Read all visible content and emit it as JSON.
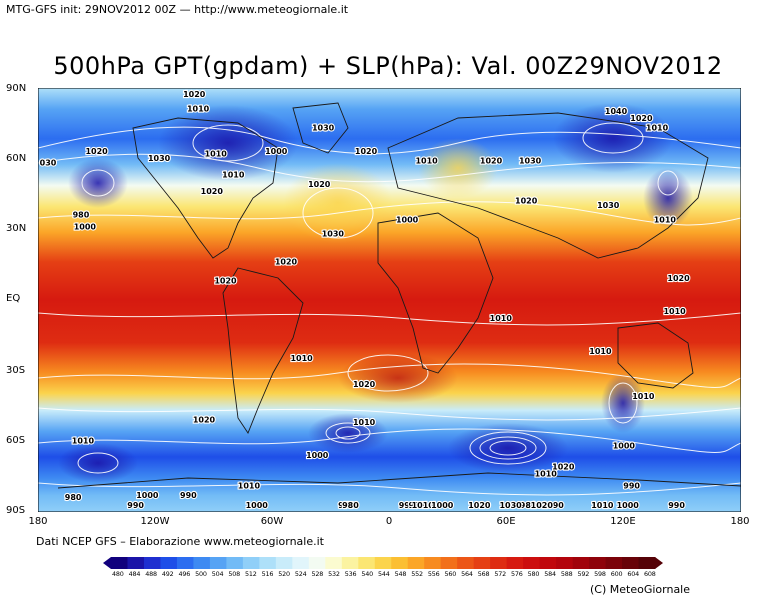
{
  "header": {
    "run_info": "MTG-GFS init: 29NOV2012 00Z",
    "separator": "—",
    "url": "http://www.meteogiornale.it"
  },
  "title": "500hPa GPT(gpdam) + SLP(hPa): Val. 00Z29NOV2012",
  "lat_labels": [
    "90N",
    "60N",
    "30N",
    "EQ",
    "30S",
    "60S",
    "90S"
  ],
  "lon_labels": [
    "180",
    "120W",
    "60W",
    "0",
    "60E",
    "120E",
    "180"
  ],
  "credit": "Dati NCEP GFS – Elaborazione www.meteogiornale.it",
  "copyright": "(C) MeteoGiornale",
  "colorbar": {
    "labels": [
      "480",
      "484",
      "488",
      "492",
      "496",
      "500",
      "504",
      "508",
      "512",
      "516",
      "520",
      "524",
      "528",
      "532",
      "536",
      "540",
      "544",
      "548",
      "552",
      "556",
      "560",
      "564",
      "568",
      "572",
      "576",
      "580",
      "584",
      "588",
      "592",
      "598",
      "600",
      "604",
      "608"
    ],
    "colors": [
      "#11007d",
      "#1b14a8",
      "#1f2fd0",
      "#1e4ee8",
      "#2c6df0",
      "#3e8af2",
      "#56a3f4",
      "#72bbf6",
      "#90cff8",
      "#aee0f9",
      "#c9ecfa",
      "#e1f5fb",
      "#f3fbf2",
      "#fbfbd0",
      "#fbf3a1",
      "#fbe673",
      "#fbd44d",
      "#fbbf33",
      "#fba628",
      "#f78b20",
      "#f2701b",
      "#ec5617",
      "#e54014",
      "#de2c12",
      "#d61a10",
      "#cc0e0e",
      "#c0070c",
      "#b3040c",
      "#a1020b",
      "#8e020a",
      "#7b0209",
      "#680208",
      "#550207"
    ]
  },
  "pressure_labels": [
    {
      "text": "1020",
      "lon": -100,
      "lat": 87
    },
    {
      "text": "1010",
      "lon": -98,
      "lat": 80
    },
    {
      "text": "1030",
      "lon": -34,
      "lat": 72
    },
    {
      "text": "1010",
      "lon": -89,
      "lat": 61
    },
    {
      "text": "1000",
      "lon": -58,
      "lat": 62
    },
    {
      "text": "1020",
      "lon": -12,
      "lat": 62
    },
    {
      "text": "1030",
      "lon": -118,
      "lat": 59
    },
    {
      "text": "1020",
      "lon": -150,
      "lat": 62
    },
    {
      "text": "030",
      "lon": -177,
      "lat": 57
    },
    {
      "text": "1010",
      "lon": -80,
      "lat": 52
    },
    {
      "text": "1020",
      "lon": -91,
      "lat": 45
    },
    {
      "text": "980",
      "lon": -158,
      "lat": 35
    },
    {
      "text": "1000",
      "lon": -156,
      "lat": 30
    },
    {
      "text": "1020",
      "lon": -36,
      "lat": 48
    },
    {
      "text": "1030",
      "lon": -29,
      "lat": 27
    },
    {
      "text": "1000",
      "lon": 9,
      "lat": 33
    },
    {
      "text": "1020",
      "lon": -53,
      "lat": 15
    },
    {
      "text": "1020",
      "lon": -84,
      "lat": 7
    },
    {
      "text": "1010",
      "lon": 19,
      "lat": 58
    },
    {
      "text": "1020",
      "lon": 52,
      "lat": 58
    },
    {
      "text": "1030",
      "lon": 72,
      "lat": 58
    },
    {
      "text": "1020",
      "lon": 70,
      "lat": 41
    },
    {
      "text": "1040",
      "lon": 116,
      "lat": 79
    },
    {
      "text": "1020",
      "lon": 129,
      "lat": 76
    },
    {
      "text": "1010",
      "lon": 137,
      "lat": 72
    },
    {
      "text": "1030",
      "lon": 112,
      "lat": 39
    },
    {
      "text": "1010",
      "lon": 141,
      "lat": 33
    },
    {
      "text": "1020",
      "lon": 148,
      "lat": 8
    },
    {
      "text": "1010",
      "lon": 146,
      "lat": -6
    },
    {
      "text": "1010",
      "lon": 57,
      "lat": -9
    },
    {
      "text": "1010",
      "lon": 108,
      "lat": -23
    },
    {
      "text": "1010",
      "lon": -45,
      "lat": -26
    },
    {
      "text": "1020",
      "lon": -13,
      "lat": -37
    },
    {
      "text": "1010",
      "lon": -13,
      "lat": -53
    },
    {
      "text": "1020",
      "lon": -95,
      "lat": -52
    },
    {
      "text": "1010",
      "lon": -157,
      "lat": -61
    },
    {
      "text": "1000",
      "lon": -37,
      "lat": -67
    },
    {
      "text": "1020",
      "lon": 89,
      "lat": -72
    },
    {
      "text": "1010",
      "lon": 130,
      "lat": -42
    },
    {
      "text": "1000",
      "lon": 120,
      "lat": -63
    },
    {
      "text": "1010",
      "lon": 80,
      "lat": -75
    },
    {
      "text": "990",
      "lon": 124,
      "lat": -80
    },
    {
      "text": "980",
      "lon": -162,
      "lat": -85
    },
    {
      "text": "1000",
      "lon": -124,
      "lat": -84
    },
    {
      "text": "990",
      "lon": -103,
      "lat": -84
    },
    {
      "text": "1010",
      "lon": -72,
      "lat": -80
    },
    {
      "text": "970",
      "lon": -22,
      "lat": -118
    },
    {
      "text": "980",
      "lon": -20,
      "lat": -122
    },
    {
      "text": "990",
      "lon": 9,
      "lat": -103
    },
    {
      "text": "980",
      "lon": 14,
      "lat": -121
    },
    {
      "text": "1010",
      "lon": 17,
      "lat": -128
    },
    {
      "text": "1000",
      "lon": 27,
      "lat": -126
    },
    {
      "text": "1020",
      "lon": 46,
      "lat": -126
    },
    {
      "text": "980",
      "lon": 71,
      "lat": -120
    },
    {
      "text": "990",
      "lon": 85,
      "lat": -104
    },
    {
      "text": "1010",
      "lon": 78,
      "lat": -89
    },
    {
      "text": "1010",
      "lon": 109,
      "lat": -121
    },
    {
      "text": "1000",
      "lon": 122,
      "lat": -117
    },
    {
      "text": "990",
      "lon": 147,
      "lat": -116
    },
    {
      "text": "990",
      "lon": -130,
      "lat": -140
    },
    {
      "text": "1030",
      "lon": 62,
      "lat": -144
    },
    {
      "text": "1020",
      "lon": 78,
      "lat": -147
    },
    {
      "text": "1000",
      "lon": -68,
      "lat": -157
    }
  ]
}
